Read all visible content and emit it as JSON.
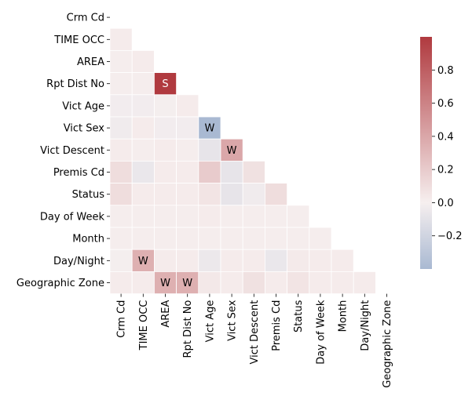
{
  "chart_data": {
    "type": "heatmap",
    "variables": [
      "Crm Cd",
      "TIME OCC",
      "AREA",
      "Rpt Dist No",
      "Vict Age",
      "Vict Sex",
      "Vict Descent",
      "Premis Cd",
      "Status",
      "Day of Week",
      "Month",
      "Day/Night",
      "Geographic Zone"
    ],
    "matrix_lower": [
      [],
      [
        0.02
      ],
      [
        0.01,
        0.02
      ],
      [
        0.01,
        0.01,
        1.0
      ],
      [
        -0.02,
        -0.02,
        -0.01,
        0.02
      ],
      [
        -0.03,
        0.02,
        -0.02,
        -0.02,
        -0.4
      ],
      [
        0.02,
        0.01,
        0.02,
        0.01,
        -0.08,
        0.4
      ],
      [
        0.1,
        -0.06,
        0.02,
        0.02,
        0.2,
        -0.08,
        0.08
      ],
      [
        0.1,
        0.02,
        0.02,
        0.02,
        0.06,
        -0.08,
        -0.03,
        0.1
      ],
      [
        0.01,
        0.01,
        0.01,
        0.01,
        0.02,
        0.01,
        0.01,
        0.01,
        0.01
      ],
      [
        0.01,
        0.01,
        0.01,
        0.01,
        0.01,
        0.01,
        0.01,
        0.01,
        0.01,
        0.01
      ],
      [
        -0.01,
        0.35,
        0.02,
        0.02,
        -0.05,
        0.02,
        0.02,
        -0.06,
        0.03,
        0.02,
        0.02
      ],
      [
        0.02,
        0.02,
        0.35,
        0.35,
        0.04,
        0.02,
        0.08,
        0.02,
        0.06,
        0.02,
        0.02,
        0.02
      ]
    ],
    "annotations": [
      {
        "row": 3,
        "col": 2,
        "text": "S"
      },
      {
        "row": 5,
        "col": 4,
        "text": "W"
      },
      {
        "row": 6,
        "col": 5,
        "text": "W"
      },
      {
        "row": 11,
        "col": 1,
        "text": "W"
      },
      {
        "row": 12,
        "col": 2,
        "text": "W"
      },
      {
        "row": 12,
        "col": 3,
        "text": "W"
      }
    ],
    "color_range": [
      -0.4,
      1.0
    ],
    "colorbar_ticks": [
      -0.2,
      0.0,
      0.2,
      0.4,
      0.6,
      0.8
    ],
    "colormap": "vlag",
    "colors": {
      "negative": "#a9b9d2",
      "neutral": "#f6efef",
      "positive": "#b03a3f"
    },
    "mask": "upper-triangle-including-diagonal",
    "colorbar_position": "right"
  }
}
